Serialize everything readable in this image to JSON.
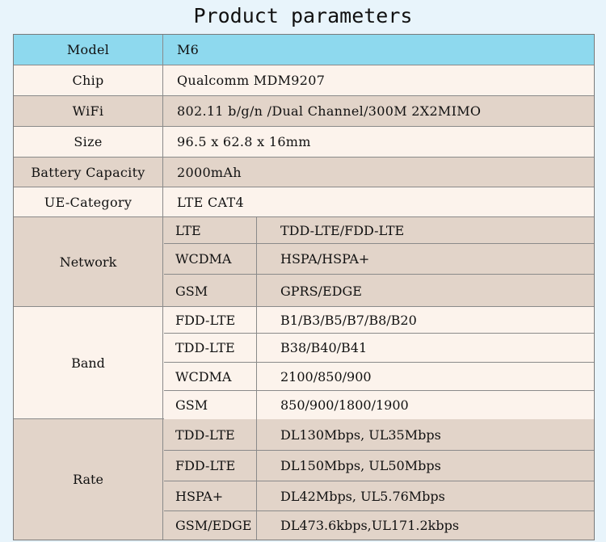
{
  "title": "Product parameters",
  "rows": [
    {
      "label": "Model",
      "value": "M6"
    },
    {
      "label": "Chip",
      "value": "Qualcomm MDM9207"
    },
    {
      "label": "WiFi",
      "value": "802.11 b/g/n /Dual Channel/300M 2X2MIMO"
    },
    {
      "label": "Size",
      "value": "96.5 x 62.8 x 16mm"
    },
    {
      "label": "Battery Capacity",
      "value": "2000mAh"
    },
    {
      "label": "UE-Category",
      "value": "LTE CAT4"
    }
  ],
  "network": {
    "label": "Network",
    "items": [
      {
        "k": "LTE",
        "v": "TDD-LTE/FDD-LTE"
      },
      {
        "k": "WCDMA",
        "v": "HSPA/HSPA+"
      },
      {
        "k": "GSM",
        "v": "GPRS/EDGE"
      }
    ]
  },
  "band": {
    "label": "Band",
    "items": [
      {
        "k": "FDD-LTE",
        "v": "B1/B3/B5/B7/B8/B20"
      },
      {
        "k": "TDD-LTE",
        "v": "B38/B40/B41"
      },
      {
        "k": "WCDMA",
        "v": "2100/850/900"
      },
      {
        "k": "GSM",
        "v": "850/900/1800/1900"
      }
    ]
  },
  "rate": {
    "label": "Rate",
    "items": [
      {
        "k": "TDD-LTE",
        "v": "DL130Mbps, UL35Mbps"
      },
      {
        "k": "FDD-LTE",
        "v": "DL150Mbps, UL50Mbps"
      },
      {
        "k": "HSPA+",
        "v": "DL42Mbps,  UL5.76Mbps"
      },
      {
        "k": "GSM/EDGE",
        "v": "DL473.6kbps,UL171.2kbps"
      }
    ]
  }
}
